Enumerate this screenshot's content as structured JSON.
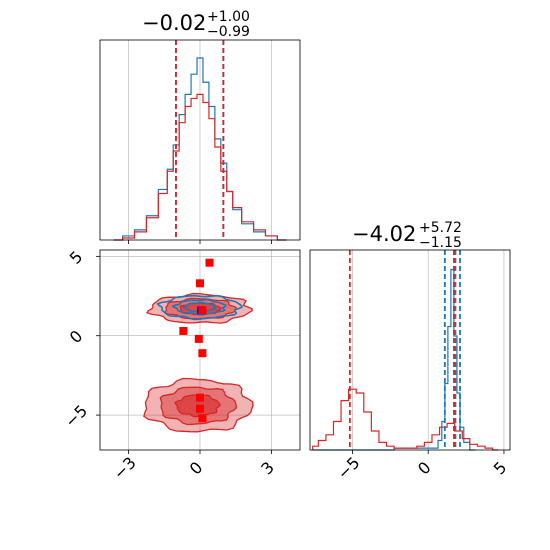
{
  "colors": {
    "blue": "#1f77b4",
    "red": "#d62728",
    "marker_blue": "#0000ff",
    "marker_red": "#ff0000"
  },
  "titles": {
    "x": {
      "main": "−0.02",
      "plus": "+1.00",
      "minus": "−0.99"
    },
    "y": {
      "main": "−4.02",
      "plus": "+5.72",
      "minus": "−1.15"
    }
  },
  "chart_data": [
    {
      "panel": "x-marginal",
      "type": "histogram",
      "x_range": [
        -4.2,
        4.2
      ],
      "series": [
        {
          "color": "blue",
          "bin_centers": [
            -3.5,
            -3.0,
            -2.5,
            -2.0,
            -1.5,
            -1.25,
            -1.0,
            -0.75,
            -0.5,
            -0.25,
            0.0,
            0.25,
            0.5,
            0.75,
            1.0,
            1.25,
            1.5,
            2.0,
            2.5,
            3.0,
            3.5
          ],
          "heights": [
            0.0,
            0.02,
            0.05,
            0.12,
            0.25,
            0.35,
            0.47,
            0.62,
            0.72,
            0.82,
            0.9,
            0.78,
            0.66,
            0.5,
            0.38,
            0.24,
            0.15,
            0.08,
            0.04,
            0.02,
            0.0
          ]
        },
        {
          "color": "red",
          "bin_centers": [
            -3.5,
            -3.0,
            -2.5,
            -2.0,
            -1.5,
            -1.25,
            -1.0,
            -0.75,
            -0.5,
            -0.25,
            0.0,
            0.25,
            0.5,
            0.75,
            1.0,
            1.25,
            1.5,
            2.0,
            2.5,
            3.0,
            3.5
          ],
          "heights": [
            0.0,
            0.01,
            0.04,
            0.11,
            0.23,
            0.34,
            0.44,
            0.58,
            0.66,
            0.7,
            0.72,
            0.68,
            0.6,
            0.46,
            0.34,
            0.24,
            0.16,
            0.09,
            0.05,
            0.02,
            0.0
          ]
        }
      ],
      "quantile_lines": [
        {
          "value": -1.01,
          "color": "blue"
        },
        {
          "value": -1.01,
          "color": "red"
        },
        {
          "value": 0.98,
          "color": "blue"
        },
        {
          "value": 0.98,
          "color": "red"
        }
      ]
    },
    {
      "panel": "y-marginal",
      "type": "histogram",
      "x_range": [
        -7.8,
        5.4
      ],
      "xticks": [
        -5,
        0,
        5
      ],
      "series": [
        {
          "color": "blue",
          "bin_centers": [
            -7.5,
            -5.0,
            0.5,
            0.8,
            1.0,
            1.2,
            1.4,
            1.6,
            1.8,
            2.0,
            2.2,
            2.5,
            3.0
          ],
          "heights": [
            0.0,
            0.0,
            0.01,
            0.05,
            0.15,
            0.35,
            0.65,
            0.95,
            0.6,
            0.3,
            0.12,
            0.04,
            0.0
          ]
        },
        {
          "color": "red",
          "bin_centers": [
            -7.5,
            -7.0,
            -6.5,
            -6.0,
            -5.5,
            -5.0,
            -4.5,
            -4.0,
            -3.5,
            -3.0,
            -2.5,
            -2.0,
            -1.5,
            -1.0,
            -0.5,
            0.0,
            0.5,
            1.0,
            1.5,
            2.0,
            2.5,
            3.0,
            3.5,
            4.0,
            4.5
          ],
          "heights": [
            0.02,
            0.05,
            0.08,
            0.15,
            0.26,
            0.32,
            0.3,
            0.2,
            0.1,
            0.04,
            0.02,
            0.01,
            0.01,
            0.01,
            0.02,
            0.04,
            0.08,
            0.12,
            0.14,
            0.1,
            0.06,
            0.03,
            0.02,
            0.01,
            0.0
          ]
        }
      ],
      "quantile_lines": [
        {
          "value": 1.1,
          "color": "blue"
        },
        {
          "value": 1.8,
          "color": "blue"
        },
        {
          "value": 2.1,
          "color": "blue"
        },
        {
          "value": -5.17,
          "color": "red"
        },
        {
          "value": 1.7,
          "color": "red"
        }
      ]
    },
    {
      "panel": "joint",
      "type": "contour",
      "x_range": [
        -4.2,
        4.2
      ],
      "y_range": [
        -7.2,
        5.4
      ],
      "xticks": [
        -3,
        0,
        3
      ],
      "yticks": [
        -5,
        0,
        5
      ],
      "blue_blobs": [
        {
          "cx": 0.0,
          "cy": 1.8,
          "sx": 1.4,
          "sy": 0.6
        }
      ],
      "red_blobs": [
        {
          "cx": 0.0,
          "cy": 1.7,
          "sx": 1.4,
          "sy": 0.6
        },
        {
          "cx": -0.1,
          "cy": -4.4,
          "sx": 1.5,
          "sy": 1.1
        }
      ],
      "markers": [
        {
          "x": 0.05,
          "y": 1.6,
          "color": "marker_blue"
        },
        {
          "x": 0.1,
          "y": 1.6,
          "color": "marker_red"
        },
        {
          "x": -0.7,
          "y": 0.3,
          "color": "marker_red"
        },
        {
          "x": 0.0,
          "y": 3.3,
          "color": "marker_red"
        },
        {
          "x": -0.05,
          "y": -0.2,
          "color": "marker_red"
        },
        {
          "x": 0.1,
          "y": -1.1,
          "color": "marker_red"
        },
        {
          "x": 0.0,
          "y": -3.9,
          "color": "marker_red"
        },
        {
          "x": 0.0,
          "y": -4.6,
          "color": "marker_red"
        },
        {
          "x": 0.1,
          "y": -5.2,
          "color": "marker_red"
        },
        {
          "x": 0.4,
          "y": 4.6,
          "color": "marker_red"
        }
      ]
    }
  ]
}
